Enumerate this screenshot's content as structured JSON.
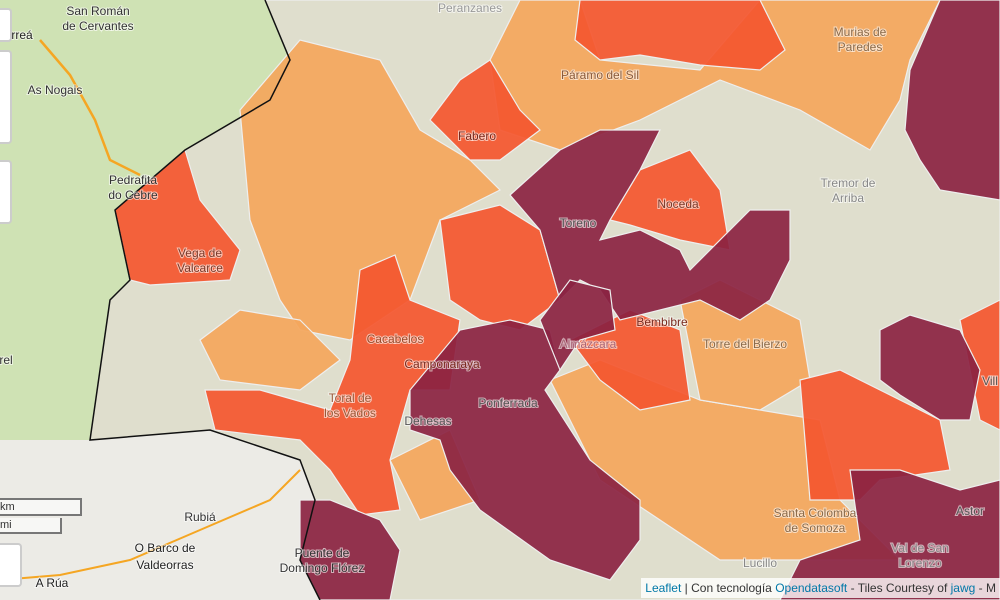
{
  "map": {
    "places": [
      {
        "lines": [
          "San Román",
          "de Cervantes"
        ]
      },
      {
        "lines": [
          "rreá"
        ]
      },
      {
        "lines": [
          "As Nogais"
        ]
      },
      {
        "lines": [
          "Pedrafita",
          "do Cebre"
        ]
      },
      {
        "lines": [
          "Vega de",
          "Valcarce"
        ]
      },
      {
        "lines": [
          "Peranzanes"
        ]
      },
      {
        "lines": [
          "Fabero"
        ]
      },
      {
        "lines": [
          "Páramo del Sil"
        ]
      },
      {
        "lines": [
          "Murias de",
          "Paredes"
        ]
      },
      {
        "lines": [
          "Tremor de",
          "Arriba"
        ]
      },
      {
        "lines": [
          "Toreno"
        ]
      },
      {
        "lines": [
          "Noceda"
        ]
      },
      {
        "lines": [
          "Bembibre"
        ]
      },
      {
        "lines": [
          "Almázcara"
        ]
      },
      {
        "lines": [
          "Torre del Bierzo"
        ]
      },
      {
        "lines": [
          "Cacabelos"
        ]
      },
      {
        "lines": [
          "Camponaraya"
        ]
      },
      {
        "lines": [
          "Toral de",
          "los Vados"
        ]
      },
      {
        "lines": [
          "Ponferrada"
        ]
      },
      {
        "lines": [
          "Dehesas"
        ]
      },
      {
        "lines": [
          "Rubiá"
        ]
      },
      {
        "lines": [
          "O Barco de",
          "Valdeorras"
        ]
      },
      {
        "lines": [
          "A Rúa"
        ]
      },
      {
        "lines": [
          "Puente de",
          "Domingo Flórez"
        ]
      },
      {
        "lines": [
          "Santa Colomba",
          "de Somoza"
        ]
      },
      {
        "lines": [
          "Lucillo"
        ]
      },
      {
        "lines": [
          "Val de San",
          "Lorenzo"
        ]
      },
      {
        "lines": [
          "Astor"
        ]
      },
      {
        "lines": [
          "Vill"
        ]
      },
      {
        "lines": [
          "rel"
        ]
      }
    ],
    "scale": {
      "metric": "km",
      "imperial": "mi"
    },
    "attribution": {
      "leaflet": "Leaflet",
      "sep1": "| Con tecnología",
      "ods": "Opendatasoft",
      "sep2": "- Tiles Courtesy of",
      "jawg": "jawg",
      "tail": "- M"
    }
  }
}
